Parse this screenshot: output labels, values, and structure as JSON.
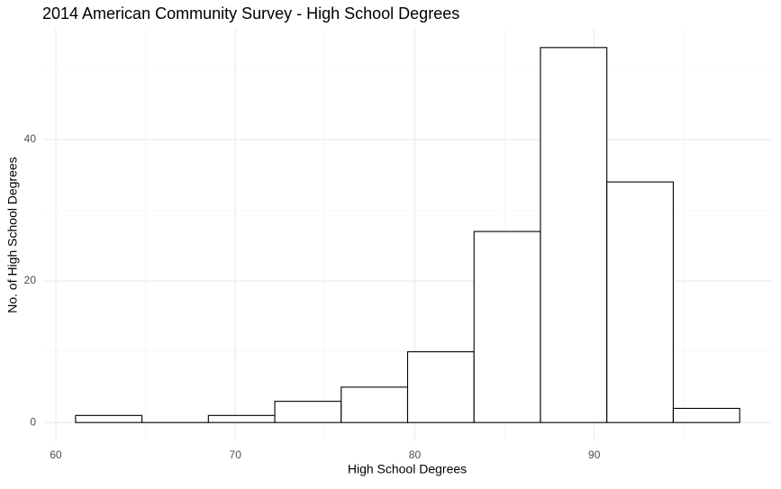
{
  "chart_data": {
    "type": "histogram",
    "title": "2014 American Community Survey - High School Degrees",
    "x_label": "High School Degrees",
    "y_label": "No. of High School Degrees",
    "bins": [
      61.1,
      64.8,
      68.5,
      72.2,
      75.9,
      79.6,
      83.3,
      87.0,
      90.7,
      94.4,
      98.1
    ],
    "counts": [
      1,
      0,
      1,
      3,
      5,
      10,
      27,
      53,
      34,
      2
    ],
    "fill": "#ffffff",
    "edge_color": "#000000",
    "xlim": [
      59.25,
      99.95
    ],
    "xticks": [
      60,
      70,
      80,
      90
    ],
    "x_minor_ticks": [
      65,
      75,
      85,
      95
    ],
    "ylim": [
      -2.65,
      55.65
    ],
    "yticks": [
      0,
      20,
      40
    ],
    "y_minor_ticks": [
      10,
      30,
      50
    ],
    "grid": true
  }
}
